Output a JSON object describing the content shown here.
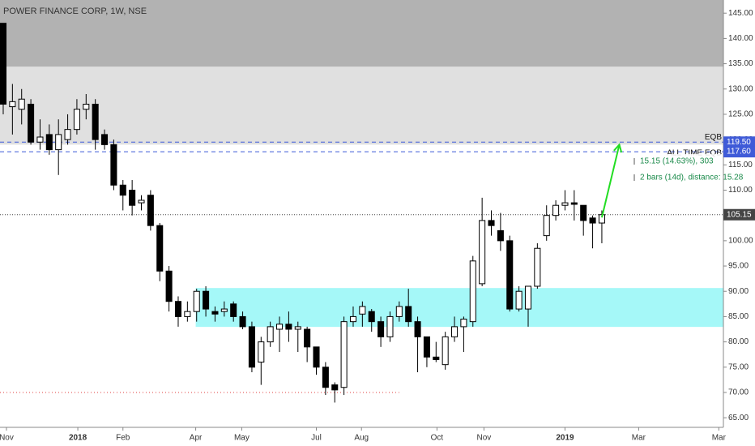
{
  "chart_data": {
    "type": "candlestick",
    "title": "POWER FINANCE CORP, 1W, NSE",
    "up_color": "#ffffff",
    "down_color": "#000000",
    "open": [
      143,
      126.5,
      126,
      127,
      119.5,
      121,
      118,
      120,
      122,
      126,
      127,
      121,
      119,
      111,
      110,
      107.5,
      109,
      103,
      94,
      88,
      85,
      86,
      90,
      86,
      86,
      87.5,
      85,
      83,
      76,
      80,
      82.5,
      83.5,
      82.5,
      82.5,
      79,
      75,
      71.5,
      71,
      84,
      85.5,
      86,
      84,
      81,
      85,
      87,
      84,
      81,
      77,
      75.5,
      81,
      83,
      84,
      91.5,
      104,
      102,
      100,
      86.5,
      86.5,
      91,
      101,
      105,
      107,
      107.5,
      107,
      104.5,
      103.5
    ],
    "high": [
      143,
      131,
      130,
      128,
      124,
      123,
      124,
      125,
      128,
      129,
      128,
      122,
      120,
      112,
      112,
      109,
      110,
      103.5,
      95,
      89,
      88,
      90.5,
      91,
      87,
      88,
      88,
      86,
      84,
      81,
      84,
      85,
      86,
      84,
      83,
      79,
      76,
      72,
      85,
      87,
      88,
      86.5,
      85,
      86,
      88,
      90.5,
      85,
      81,
      80,
      82,
      85,
      85,
      97,
      108.5,
      106,
      105.5,
      101,
      91,
      91,
      99.5,
      107,
      108,
      110,
      110,
      107,
      105,
      106
    ],
    "low": [
      125,
      121,
      123,
      119,
      118,
      117,
      113,
      119,
      121,
      124,
      118,
      118,
      110,
      106,
      105,
      106,
      102,
      92,
      86,
      83,
      84,
      84,
      85,
      84,
      85,
      84,
      82.5,
      74,
      71.5,
      79,
      78,
      80,
      78,
      76,
      73.5,
      69.5,
      68,
      69.5,
      83,
      83,
      82,
      79,
      80,
      84,
      83,
      74,
      75,
      76,
      74.5,
      80,
      78,
      83,
      91,
      101,
      98,
      86,
      86,
      83,
      90.5,
      100,
      104,
      106,
      104,
      101,
      98.5,
      99.5
    ],
    "close": [
      127,
      127.5,
      128,
      119.5,
      120.5,
      118,
      121,
      122,
      126,
      127,
      120,
      119,
      111,
      109,
      107,
      108,
      103,
      94,
      88,
      85,
      86,
      90,
      86.5,
      85.5,
      86.5,
      85,
      83,
      75,
      80,
      83,
      83.5,
      82.5,
      83,
      79,
      75,
      71,
      70.5,
      84,
      85,
      87,
      84,
      81,
      85,
      87,
      84,
      81,
      77,
      76.5,
      81,
      83,
      84.5,
      96,
      104,
      103,
      100,
      86.5,
      90,
      91,
      98.5,
      105,
      107,
      107.5,
      107.2,
      104,
      103.5,
      105.15
    ],
    "xlim": [
      -0.35,
      78.2
    ],
    "xticks": [
      {
        "value": 0.35,
        "label": "Nov"
      },
      {
        "value": 8.1,
        "label": "2018"
      },
      {
        "value": 13.0,
        "label": "Feb"
      },
      {
        "value": 20.9,
        "label": "Apr"
      },
      {
        "value": 25.9,
        "label": "May"
      },
      {
        "value": 34.0,
        "label": "Jul"
      },
      {
        "value": 38.9,
        "label": "Aug"
      },
      {
        "value": 47.1,
        "label": "Oct"
      },
      {
        "value": 52.2,
        "label": "Nov"
      },
      {
        "value": 61.0,
        "label": "2019"
      },
      {
        "value": 69.0,
        "label": "Mar"
      },
      {
        "value": 77.7,
        "label": "Mar"
      }
    ],
    "ylim": [
      63.1,
      147.6
    ],
    "yticks": [
      {
        "value": 65,
        "label": "65.00"
      },
      {
        "value": 70,
        "label": "70.00"
      },
      {
        "value": 75,
        "label": "75.00"
      },
      {
        "value": 80,
        "label": "80.00"
      },
      {
        "value": 85,
        "label": "85.00"
      },
      {
        "value": 90,
        "label": "90.00"
      },
      {
        "value": 95,
        "label": "95.00"
      },
      {
        "value": 100,
        "label": "100.00"
      },
      {
        "value": 105,
        "label": "105.00"
      },
      {
        "value": 110,
        "label": "110.00"
      },
      {
        "value": 115,
        "label": "115.00"
      },
      {
        "value": 120,
        "label": "120.00"
      },
      {
        "value": 125,
        "label": "125.00"
      },
      {
        "value": 130,
        "label": "130.00"
      },
      {
        "value": 135,
        "label": "135.00"
      },
      {
        "value": 140,
        "label": "140.00"
      },
      {
        "value": 145,
        "label": "145.00"
      }
    ],
    "zones": [
      {
        "from": 134.4,
        "to": 147.6,
        "x_from": -0.35,
        "color": "#b2b2b2"
      },
      {
        "from": 119.0,
        "to": 134.4,
        "x_from": -0.35,
        "color": "#e0e0e0"
      },
      {
        "from": 82.96,
        "to": 90.65,
        "x_from": 20.9,
        "color": "#a5f8f8"
      }
    ],
    "price_lines": [
      {
        "value": 119.5,
        "label": "119.50",
        "name": "EQB",
        "color": "#3f5bd8",
        "dash": "5,4"
      },
      {
        "value": 117.6,
        "label": "117.60",
        "name": "ALL TIME EQB",
        "color": "#3f5bd8",
        "dash": "5,4"
      },
      {
        "value": 105.15,
        "label": "105.15",
        "color": "#444444",
        "dash": "1,2"
      }
    ],
    "support_line": {
      "value": 70,
      "x_to": 43.0,
      "color": "#e04040"
    },
    "arrow": {
      "from": [
        65,
        104.6
      ],
      "to": [
        66.9,
        119
      ],
      "color": "#22dd22"
    },
    "measure": [
      "15.15 (14.63%), 303",
      "2 bars (14d), distance: 15.28"
    ],
    "measure_color": "#1a8a4a"
  }
}
